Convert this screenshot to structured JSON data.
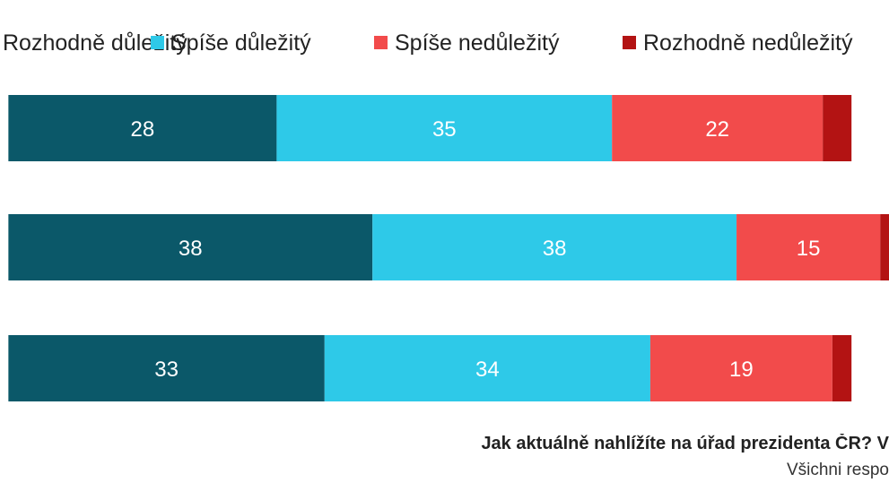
{
  "chart_data": {
    "type": "bar",
    "orientation": "horizontal",
    "stacked": true,
    "legend_position": "top",
    "grid": false,
    "xlim": [
      -2,
      100
    ],
    "categories": [
      "",
      "",
      ""
    ],
    "series": [
      {
        "name": "Rozhodně důležitý",
        "color": "#0b5869",
        "values": [
          28,
          38,
          33
        ]
      },
      {
        "name": "Spíše důležitý",
        "color": "#2ec9e8",
        "values": [
          35,
          38,
          34
        ]
      },
      {
        "name": "Spíše nedůležitý",
        "color": "#f24b4b",
        "values": [
          22,
          15,
          19
        ]
      },
      {
        "name": "Rozhodně nedůležitý",
        "color": "#b31313",
        "values": [
          3,
          2,
          2
        ]
      }
    ]
  },
  "footer": {
    "question": "Jak aktuálně nahlížíte na úřad prezidenta ČR? V",
    "base": "Všichni respo"
  }
}
